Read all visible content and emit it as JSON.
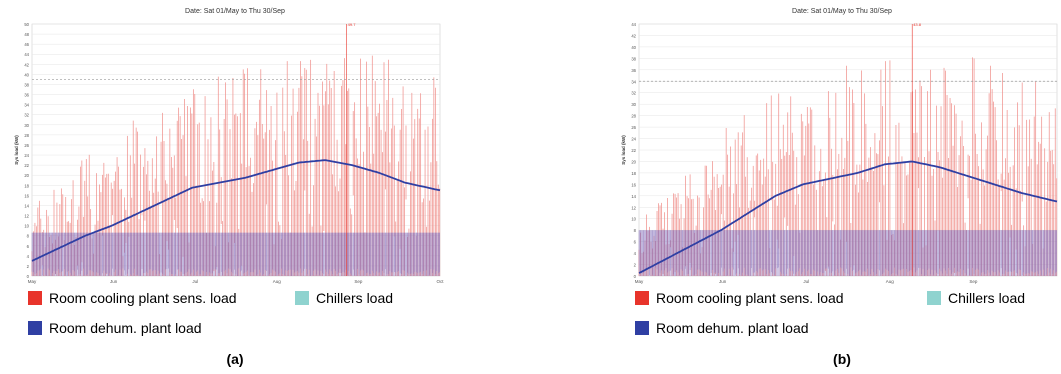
{
  "colors": {
    "cooling": "#e8342b",
    "cooling_bar": "#ef8b87",
    "dehum": "#2f3fa3",
    "chillers": "#8fd3cf",
    "dehum_band": "#7a63b5",
    "threshold": "#999999"
  },
  "legend_labels": {
    "cooling": "Room cooling plant sens. load",
    "chillers": "Chillers load",
    "dehum": "Room dehum. plant load"
  },
  "panels": [
    {
      "label": "(a)"
    },
    {
      "label": "(b)"
    }
  ],
  "chart_data": [
    {
      "type": "bar",
      "title": "Date: Sat 01/May to Thu 30/Sep",
      "ylabel": "Sys load (kW)",
      "xlabel": "",
      "ylim": [
        0,
        50
      ],
      "yticks": [
        "0",
        "2",
        "4",
        "6",
        "8",
        "10",
        "12",
        "14",
        "16",
        "18",
        "20",
        "22",
        "24",
        "26",
        "28",
        "30",
        "32",
        "34",
        "36",
        "38",
        "40",
        "42",
        "44",
        "46",
        "48",
        "50"
      ],
      "xticks": [
        "May",
        "Jun",
        "Jul",
        "Aug",
        "Sep",
        "Oct"
      ],
      "x_range_days": [
        0,
        153
      ],
      "threshold_line": 39,
      "peak_label": "49.7",
      "peak_day": 118,
      "dehum_band_level": 8.6,
      "grid": true,
      "series": [
        {
          "name": "Room cooling plant sens. load",
          "envelope_days": [
            0,
            10,
            20,
            30,
            40,
            50,
            60,
            70,
            80,
            90,
            100,
            110,
            120,
            130,
            140,
            153
          ],
          "envelope": [
            14,
            18,
            24,
            28,
            32,
            36,
            39,
            40,
            42,
            43,
            44,
            45,
            46,
            44,
            42,
            40
          ]
        },
        {
          "name": "Room dehum. plant load",
          "x": [
            0,
            10,
            20,
            30,
            40,
            50,
            60,
            70,
            80,
            90,
            100,
            110,
            120,
            130,
            140,
            153
          ],
          "y": [
            3,
            5.5,
            8,
            10,
            12.5,
            15,
            17.5,
            18.5,
            19.5,
            21,
            22.5,
            23,
            22,
            20.5,
            18.5,
            17
          ]
        },
        {
          "name": "Chillers load",
          "values": []
        }
      ]
    },
    {
      "type": "bar",
      "title": "Date: Sat 01/May to Thu 30/Sep",
      "ylabel": "Sys load (kW)",
      "xlabel": "",
      "ylim": [
        0,
        44
      ],
      "yticks": [
        "0",
        "2",
        "4",
        "6",
        "8",
        "10",
        "12",
        "14",
        "16",
        "18",
        "20",
        "22",
        "24",
        "26",
        "28",
        "30",
        "32",
        "34",
        "36",
        "38",
        "40",
        "42",
        "44"
      ],
      "xticks": [
        "May",
        "Jun",
        "Jul",
        "Aug",
        "Sep"
      ],
      "x_range_days": [
        0,
        153
      ],
      "threshold_line": 34,
      "peak_label": "43.8",
      "peak_day": 100,
      "dehum_band_level": 8,
      "grid": true,
      "series": [
        {
          "name": "Room cooling plant sens. load",
          "envelope_days": [
            0,
            10,
            20,
            30,
            40,
            50,
            60,
            70,
            80,
            90,
            100,
            110,
            120,
            130,
            140,
            153
          ],
          "envelope": [
            10,
            14,
            20,
            25,
            30,
            33,
            36,
            37,
            38,
            39,
            40,
            40,
            39,
            38,
            36,
            34
          ]
        },
        {
          "name": "Room dehum. plant load",
          "x": [
            0,
            10,
            20,
            30,
            40,
            50,
            60,
            70,
            80,
            90,
            100,
            110,
            120,
            130,
            140,
            153
          ],
          "y": [
            0.5,
            3,
            5.5,
            8,
            11,
            14,
            16,
            17,
            18,
            19.5,
            20,
            19,
            17.5,
            16,
            14.5,
            13
          ]
        },
        {
          "name": "Chillers load",
          "values": []
        }
      ]
    }
  ]
}
